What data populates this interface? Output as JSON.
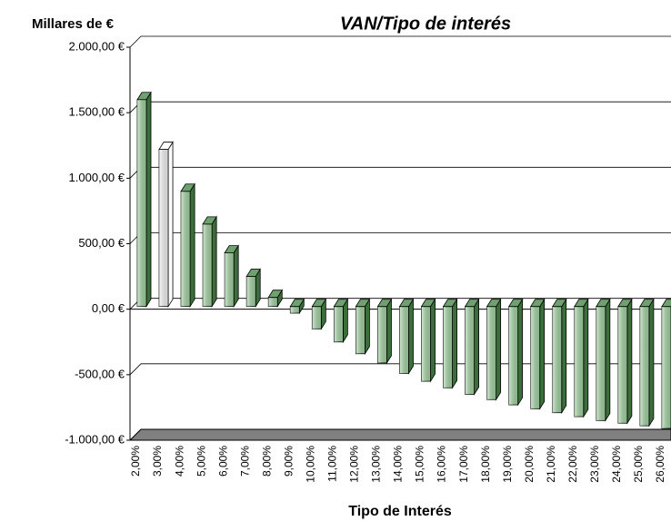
{
  "chart_data": {
    "type": "bar3d",
    "title": "VAN/Tipo de interés",
    "y_axis_label": "Millares de €",
    "x_axis_label": "Tipo de Interés",
    "categories": [
      "2,00%",
      "3,00%",
      "4,00%",
      "5,00%",
      "6,00%",
      "7,00%",
      "8,00%",
      "9,00%",
      "10,00%",
      "11,00%",
      "12,00%",
      "13,00%",
      "14,00%",
      "15,00%",
      "16,00%",
      "17,00%",
      "18,00%",
      "19,00%",
      "20,00%",
      "21,00%",
      "22,00%",
      "23,00%",
      "24,00%",
      "25,00%",
      "26,00%"
    ],
    "values": [
      1600,
      1220,
      900,
      650,
      430,
      250,
      90,
      -30,
      -150,
      -250,
      -340,
      -410,
      -490,
      -550,
      -600,
      -650,
      -690,
      -730,
      -760,
      -790,
      -820,
      -850,
      -870,
      -890,
      -910
    ],
    "colors": [
      "#a8dca8",
      "#ffffff",
      "#a8dca8",
      "#a8dca8",
      "#a8dca8",
      "#a8dca8",
      "#a8dca8",
      "#a8dca8",
      "#a8dca8",
      "#a8dca8",
      "#a8dca8",
      "#a8dca8",
      "#a8dca8",
      "#a8dca8",
      "#a8dca8",
      "#a8dca8",
      "#a8dca8",
      "#a8dca8",
      "#a8dca8",
      "#a8dca8",
      "#a8dca8",
      "#a8dca8",
      "#a8dca8",
      "#a8dca8",
      "#a8dca8"
    ],
    "ylim": [
      -1000,
      2000
    ],
    "yticks": [
      {
        "value": -1000,
        "label": "-1.000,00 €"
      },
      {
        "value": -500,
        "label": "-500,00 €"
      },
      {
        "value": 0,
        "label": "0,00 €"
      },
      {
        "value": 500,
        "label": "500,00 €"
      },
      {
        "value": 1000,
        "label": "1.000,00 €"
      },
      {
        "value": 1500,
        "label": "1.500,00 €"
      },
      {
        "value": 2000,
        "label": "2.000,00 €"
      }
    ],
    "negative_tick_color": "#ff0000",
    "floor_color": "#808080",
    "grid": true
  }
}
